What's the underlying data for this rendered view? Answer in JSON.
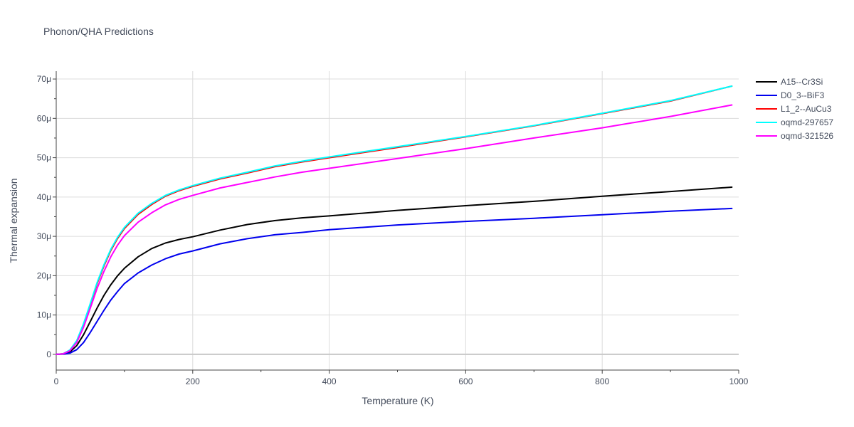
{
  "chart_data": {
    "type": "line",
    "title": "Phonon/QHA Predictions",
    "xlabel": "Temperature (K)",
    "ylabel": "Thermal expansion",
    "xlim": [
      0,
      1000
    ],
    "ylim": [
      -4,
      72
    ],
    "x_ticks": [
      0,
      200,
      400,
      600,
      800,
      1000
    ],
    "x_tick_labels": [
      "0",
      "200",
      "400",
      "600",
      "800",
      "1000"
    ],
    "y_ticks": [
      0,
      10,
      20,
      30,
      40,
      50,
      60,
      70
    ],
    "y_tick_labels": [
      "0",
      "10μ",
      "20μ",
      "30μ",
      "40μ",
      "50μ",
      "60μ",
      "70μ"
    ],
    "grid": true,
    "legend_position": "top-right outside plot",
    "x": [
      0,
      10,
      20,
      30,
      40,
      50,
      60,
      70,
      80,
      90,
      100,
      120,
      140,
      160,
      180,
      200,
      240,
      280,
      320,
      360,
      400,
      500,
      600,
      700,
      800,
      900,
      990
    ],
    "series": [
      {
        "name": "A15--Cr3Si",
        "color": "#000000",
        "values": [
          0,
          0.1,
          0.6,
          2.2,
          5.0,
          8.4,
          11.8,
          15.0,
          17.7,
          20.0,
          21.9,
          24.8,
          26.9,
          28.3,
          29.2,
          29.9,
          31.6,
          33.0,
          34.0,
          34.7,
          35.2,
          36.6,
          37.8,
          38.9,
          40.2,
          41.4,
          42.5
        ]
      },
      {
        "name": "D0_3--BiF3",
        "color": "#0000ee",
        "values": [
          0,
          0.05,
          0.3,
          1.2,
          3.0,
          5.6,
          8.4,
          11.2,
          13.8,
          16.0,
          18.0,
          20.7,
          22.7,
          24.3,
          25.5,
          26.3,
          28.1,
          29.4,
          30.4,
          31.0,
          31.7,
          32.9,
          33.8,
          34.6,
          35.5,
          36.4,
          37.1
        ]
      },
      {
        "name": "L1_2--AuCu3",
        "color": "#ff0000",
        "values": [
          0,
          0.15,
          1.0,
          3.3,
          7.6,
          12.8,
          18.0,
          22.5,
          26.4,
          29.5,
          32.0,
          35.6,
          38.1,
          40.2,
          41.6,
          42.7,
          44.6,
          46.1,
          47.7,
          48.9,
          50.0,
          52.6,
          55.3,
          58.1,
          61.2,
          64.4,
          68.2
        ]
      },
      {
        "name": "oqmd-297657",
        "color": "#00ffff",
        "values": [
          0,
          0.15,
          1.1,
          3.5,
          7.8,
          13.0,
          18.3,
          22.8,
          26.7,
          29.8,
          32.3,
          35.9,
          38.4,
          40.4,
          41.8,
          42.9,
          44.8,
          46.3,
          47.9,
          49.1,
          50.2,
          52.8,
          55.4,
          58.2,
          61.3,
          64.5,
          68.2
        ]
      },
      {
        "name": "oqmd-321526",
        "color": "#ff00ff",
        "values": [
          0,
          0.12,
          0.9,
          3.0,
          6.9,
          11.8,
          16.8,
          21.1,
          24.8,
          27.8,
          30.2,
          33.6,
          36.0,
          38.0,
          39.4,
          40.4,
          42.3,
          43.7,
          45.1,
          46.3,
          47.3,
          49.8,
          52.3,
          55.0,
          57.6,
          60.5,
          63.4
        ]
      }
    ]
  }
}
